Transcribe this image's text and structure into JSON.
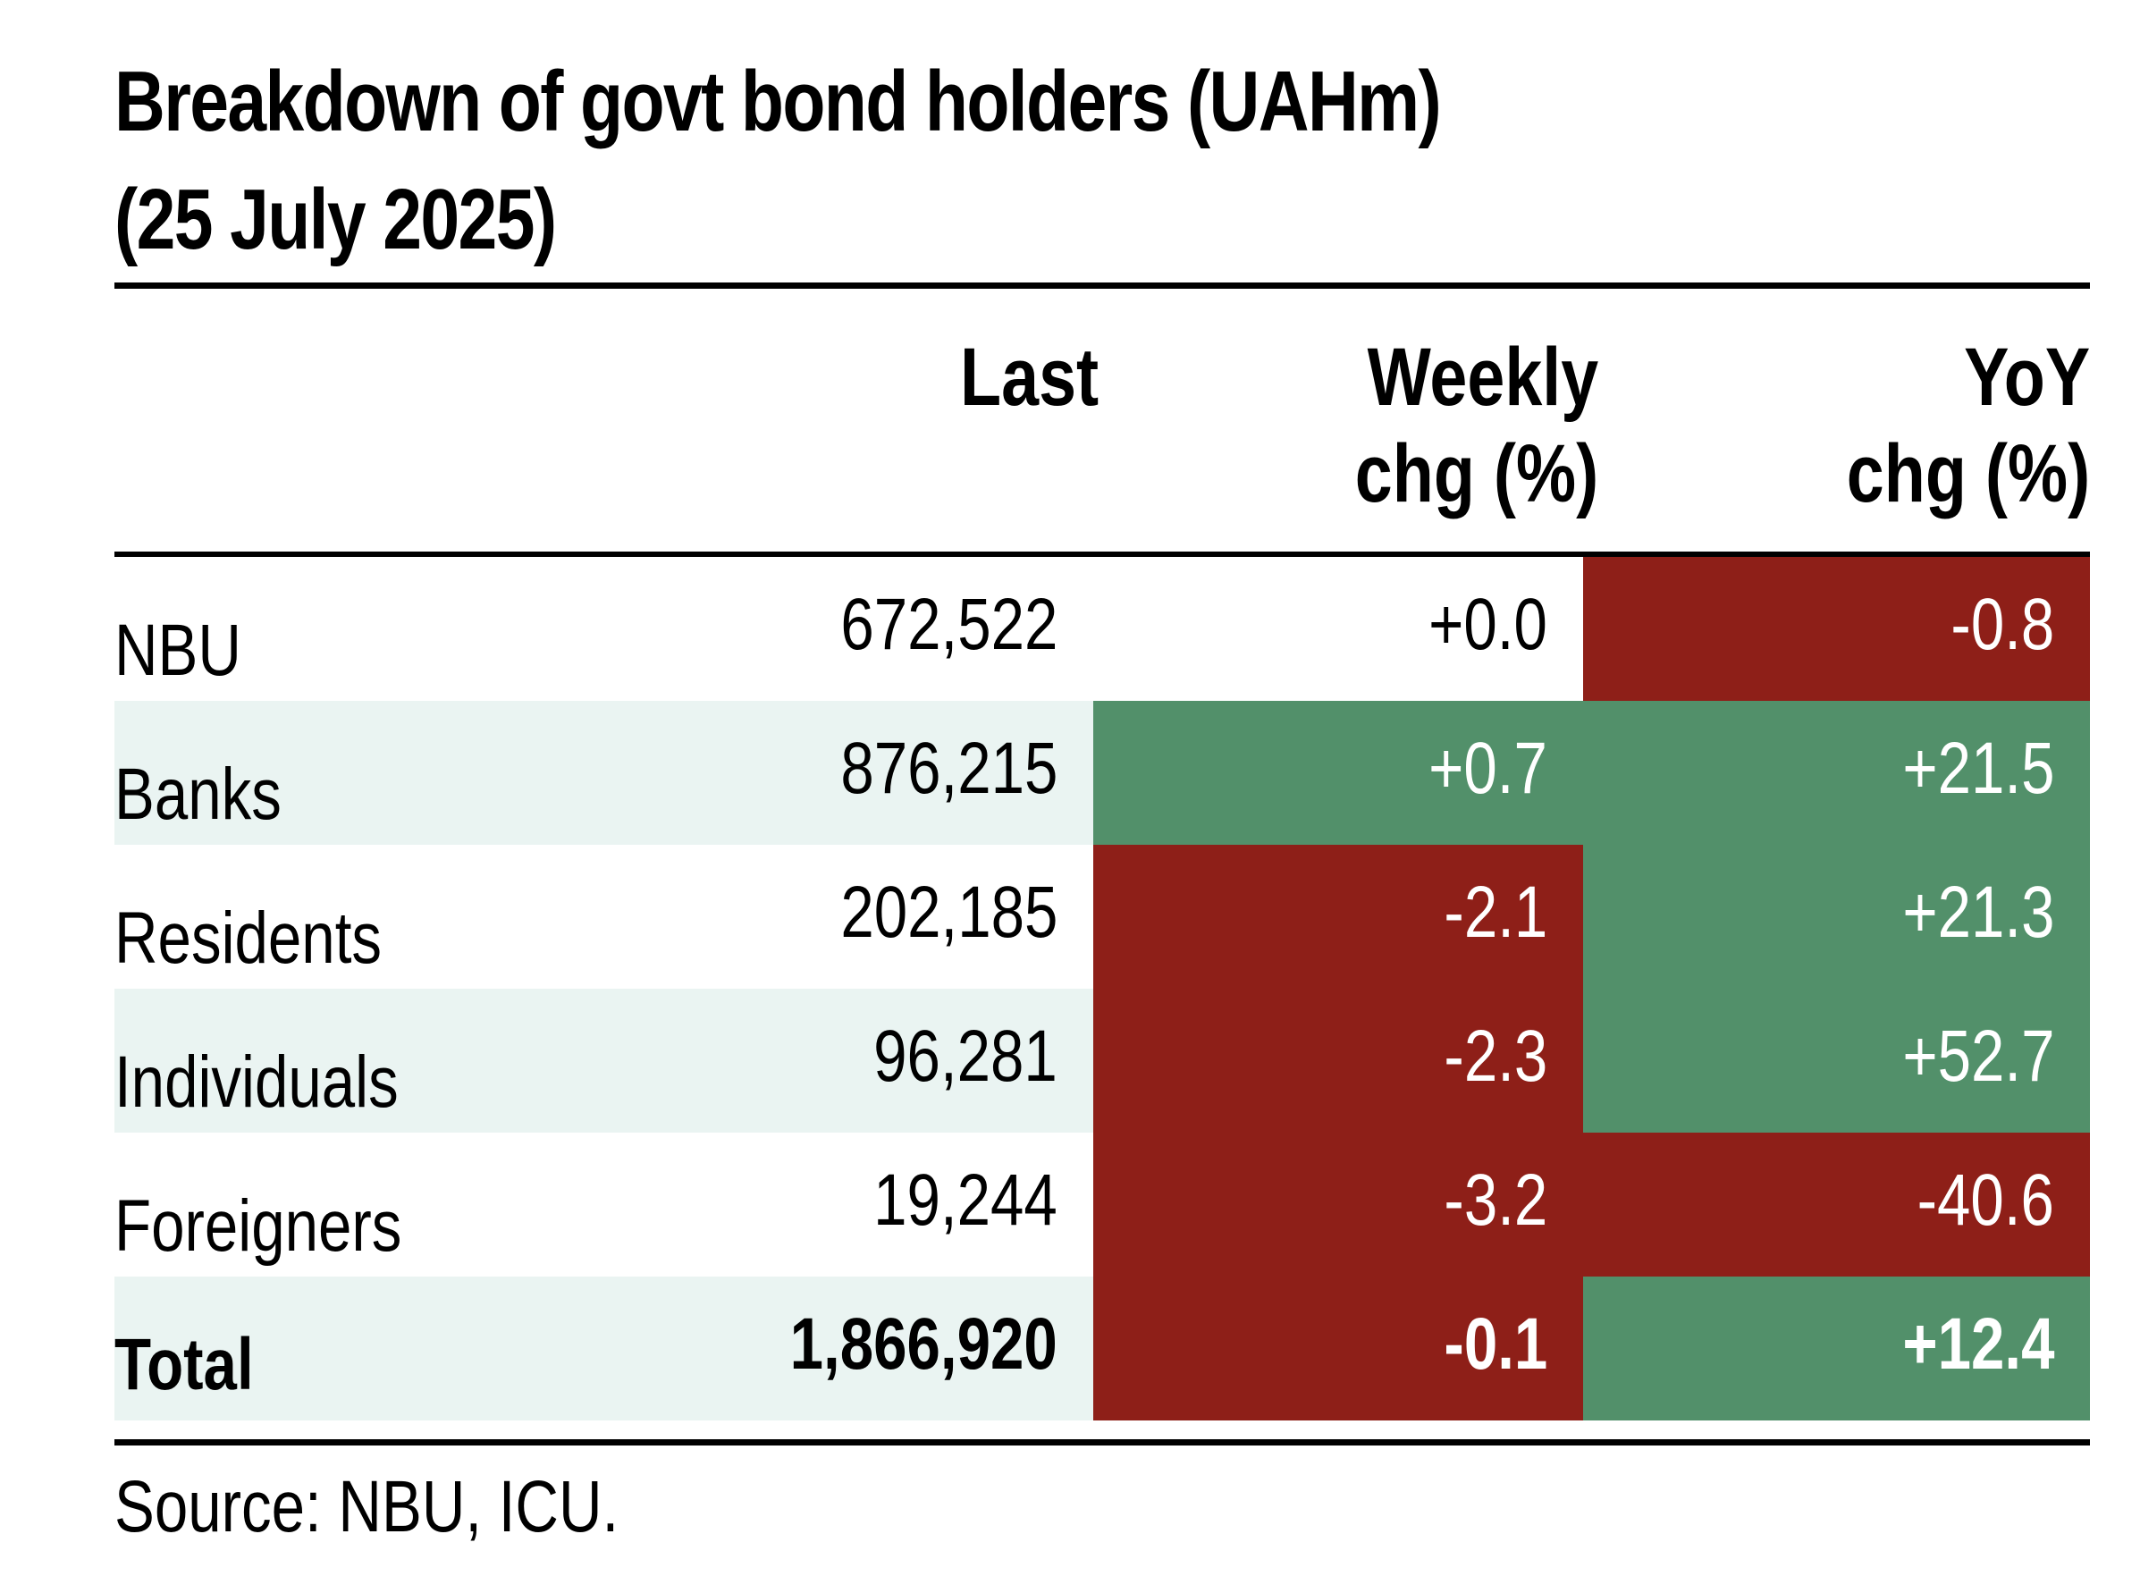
{
  "chart_data": {
    "type": "table",
    "title_lines": [
      "Breakdown of govt bond holders (UAHm)",
      "(25 July 2025)"
    ],
    "columns": [
      {
        "label_lines": [
          "Last"
        ]
      },
      {
        "label_lines": [
          "Weekly",
          "chg (%)"
        ]
      },
      {
        "label_lines": [
          "YoY",
          "chg (%)"
        ]
      }
    ],
    "rows": [
      {
        "name": "NBU",
        "last": "672,522",
        "weekly": "+0.0",
        "yoy": "-0.8",
        "weekly_status": "none",
        "yoy_status": "negative"
      },
      {
        "name": "Banks",
        "last": "876,215",
        "weekly": "+0.7",
        "yoy": "+21.5",
        "weekly_status": "positive",
        "yoy_status": "positive"
      },
      {
        "name": "Residents",
        "last": "202,185",
        "weekly": "-2.1",
        "yoy": "+21.3",
        "weekly_status": "negative",
        "yoy_status": "positive"
      },
      {
        "name": "Individuals",
        "last": "96,281",
        "weekly": "-2.3",
        "yoy": "+52.7",
        "weekly_status": "negative",
        "yoy_status": "positive"
      },
      {
        "name": "Foreigners",
        "last": "19,244",
        "weekly": "-3.2",
        "yoy": "-40.6",
        "weekly_status": "negative",
        "yoy_status": "negative"
      },
      {
        "name": "Total",
        "last": "1,866,920",
        "weekly": "-0.1",
        "yoy": "+12.4",
        "weekly_status": "negative",
        "yoy_status": "positive",
        "bold": true
      }
    ],
    "source": "Source: NBU, ICU."
  },
  "colors": {
    "negative": "#8e1f18",
    "positive": "#52906a",
    "row_shade": "#eaf4f2",
    "rule": "#000000"
  }
}
